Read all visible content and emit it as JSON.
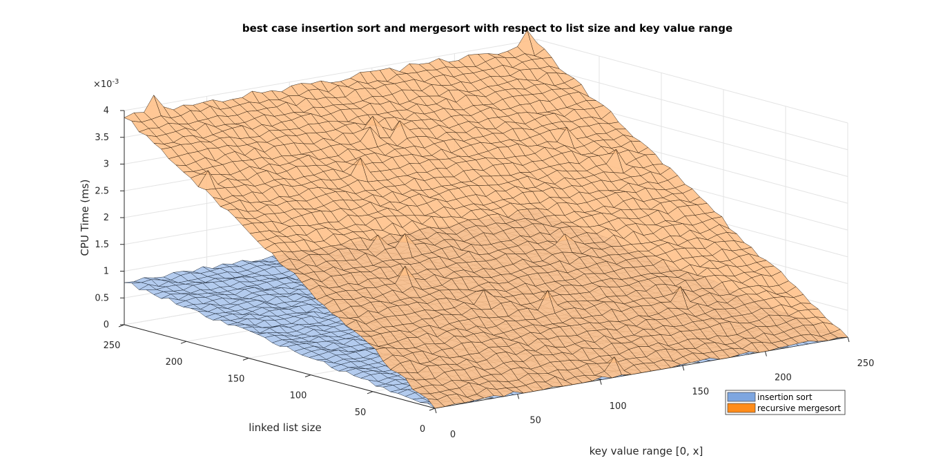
{
  "chart_data": {
    "type": "surface",
    "title": "best case insertion sort and mergesort with respect to list size and key value range",
    "xlabel": "key value range [0, x]",
    "ylabel": "linked list size",
    "zlabel": "CPU Time (ms)",
    "z_exponent_label": "×10",
    "z_exponent_power": "-3",
    "xlim": [
      0,
      250
    ],
    "ylim": [
      0,
      250
    ],
    "zlim": [
      0,
      0.004
    ],
    "x_ticks": [
      "0",
      "50",
      "100",
      "150",
      "200",
      "250"
    ],
    "y_ticks": [
      "0",
      "50",
      "100",
      "150",
      "200",
      "250"
    ],
    "z_ticks": [
      "0",
      "0.5",
      "1",
      "1.5",
      "2",
      "2.5",
      "3",
      "3.5",
      "4"
    ],
    "grid": true,
    "legend_position": "bottom-right",
    "series": [
      {
        "name": "insertion sort",
        "color": "#7ea6e0",
        "description_values": {
          "z_at_min_size": 0.0,
          "z_at_max_size": 0.0008
        }
      },
      {
        "name": "recursive mergesort",
        "color": "#ff8c1a",
        "description_values": {
          "z_at_min_size": 0.0,
          "z_at_max_size": 0.0039
        }
      }
    ]
  }
}
